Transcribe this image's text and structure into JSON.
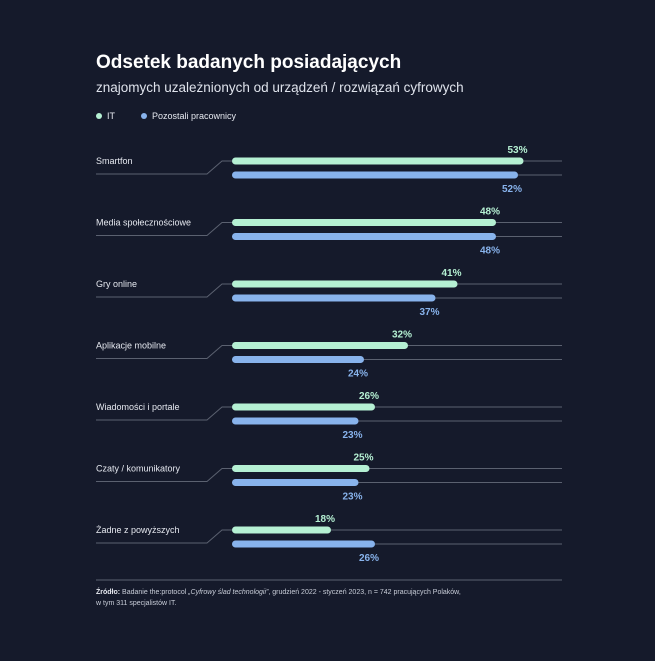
{
  "chart_data": {
    "type": "bar",
    "orientation": "horizontal",
    "title": "Odsetek badanych posiadających",
    "subtitle": "znajomych uzależnionych od urządzeń / rozwiązań cyfrowych",
    "categories": [
      "Smartfon",
      "Media społecznościowe",
      "Gry online",
      "Aplikacje mobilne",
      "Wiadomości i portale",
      "Czaty / komunikatory",
      "Żadne z powyższych"
    ],
    "series": [
      {
        "name": "IT",
        "values": [
          53,
          48,
          41,
          32,
          26,
          25,
          18
        ],
        "labels": [
          "53%",
          "48%",
          "41%",
          "32%",
          "26%",
          "25%",
          "18%"
        ]
      },
      {
        "name": "Pozostali pracownicy",
        "values": [
          52,
          48,
          37,
          24,
          23,
          23,
          26
        ],
        "labels": [
          "52%",
          "48%",
          "37%",
          "24%",
          "23%",
          "23%",
          "26%"
        ]
      }
    ],
    "xlim": [
      0,
      60
    ],
    "unit": "%",
    "legend_position": "top-left",
    "grid": false
  },
  "colors": {
    "background": "#151a2b",
    "it": "#b5f0d3",
    "others": "#88b3ec",
    "rule": "#5b6170"
  },
  "legend": {
    "it_label": "IT",
    "others_label": "Pozostali pracownicy"
  },
  "source": {
    "label": "Źródło:",
    "text_before": " Badanie the:protocol ",
    "study": "„Cyfrowy ślad technologii”",
    "text_after": ", grudzień 2022 - styczeń 2023, n = 742 pracujących Polaków,",
    "line2": "w tym 311 specjalistów IT."
  }
}
